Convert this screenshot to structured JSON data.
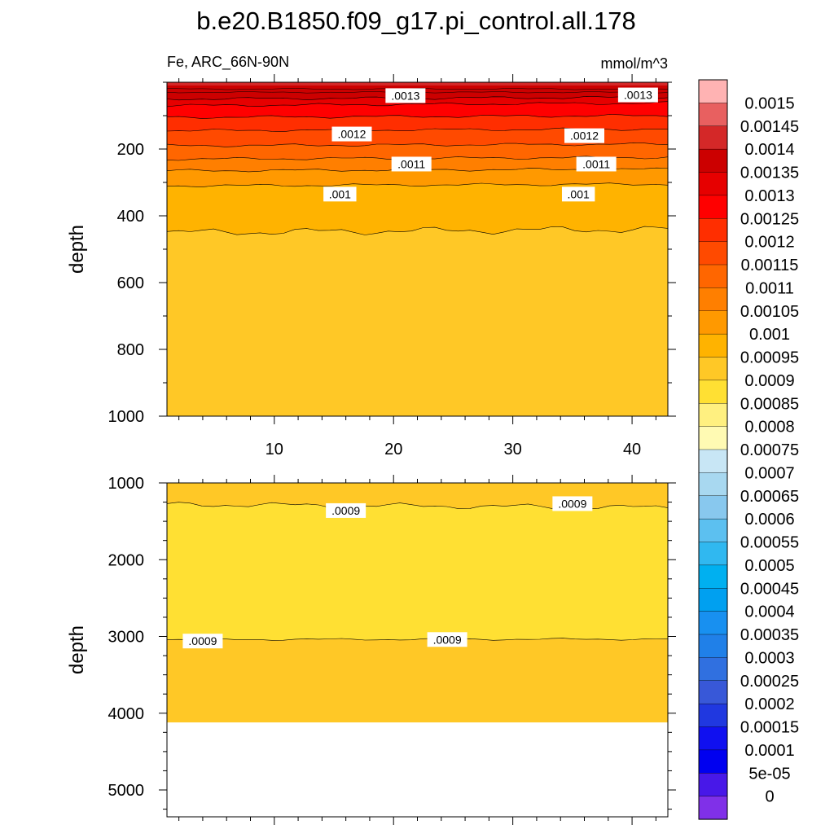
{
  "title": "b.e20.B1850.f09_g17.pi_control.all.178",
  "variable_label": "Fe, ARC_66N-90N",
  "units": "mmol/m^3",
  "colorbar": {
    "labels": [
      "0.0015",
      "0.00145",
      "0.0014",
      "0.00135",
      "0.0013",
      "0.00125",
      "0.0012",
      "0.00115",
      "0.0011",
      "0.00105",
      "0.001",
      "0.00095",
      "0.0009",
      "0.00085",
      "0.0008",
      "0.00075",
      "0.0007",
      "0.00065",
      "0.0006",
      "0.00055",
      "0.0005",
      "0.00045",
      "0.0004",
      "0.00035",
      "0.0003",
      "0.00025",
      "0.0002",
      "0.00015",
      "0.0001",
      "5e-05",
      "0"
    ],
    "colors": [
      "#FFB3B3",
      "#E86060",
      "#D42828",
      "#CC0000",
      "#E60000",
      "#FF0000",
      "#FF2E00",
      "#FF4A00",
      "#FF6600",
      "#FF7F00",
      "#FF9900",
      "#FFB300",
      "#FFC826",
      "#FFE033",
      "#FFF080",
      "#FFFAB3",
      "#C8E6F5",
      "#A8D8F0",
      "#88C8EE",
      "#5CC0F0",
      "#30B8F0",
      "#00B0F0",
      "#00A0F0",
      "#1890F0",
      "#2080E8",
      "#3070E0",
      "#3858D8",
      "#2038E0",
      "#1010F0",
      "#0000F0",
      "#4818E8",
      "#8030E8"
    ]
  },
  "chart_data": [
    {
      "type": "heatmap",
      "panel": "upper",
      "title": "Fe, ARC_66N-90N",
      "units": "mmol/m^3",
      "ylabel": "depth",
      "xlabel": "",
      "xlim": [
        1,
        43
      ],
      "ylim": [
        1000,
        0
      ],
      "x_ticks": [
        10,
        20,
        30,
        40
      ],
      "x_tick_labels": [
        "10",
        "20",
        "30",
        "40"
      ],
      "y_ticks": [
        200,
        400,
        600,
        800,
        1000
      ],
      "y_tick_labels": [
        "200",
        "400",
        "600",
        "800",
        "1000"
      ],
      "contour_levels": [
        0.00135,
        0.0013,
        0.00125,
        0.0012,
        0.00115,
        0.0011,
        0.00105,
        0.001,
        0.00095
      ],
      "contour_depths": [
        [
          50,
          45
        ],
        [
          70,
          62
        ],
        [
          105,
          100
        ],
        [
          145,
          140
        ],
        [
          190,
          185
        ],
        [
          230,
          225
        ],
        [
          265,
          260
        ],
        [
          310,
          305
        ],
        [
          450,
          440
        ]
      ],
      "contour_labels": [
        {
          "text": ".0013",
          "x": 21,
          "y": 40
        },
        {
          "text": ".0013",
          "x": 40.5,
          "y": 38
        },
        {
          "text": ".0012",
          "x": 16.5,
          "y": 155
        },
        {
          "text": ".0012",
          "x": 36,
          "y": 160
        },
        {
          "text": ".0011",
          "x": 21.5,
          "y": 245
        },
        {
          "text": ".0011",
          "x": 37,
          "y": 245
        },
        {
          "text": ".001",
          "x": 15.5,
          "y": 335
        },
        {
          "text": ".001",
          "x": 35.5,
          "y": 335
        }
      ],
      "deep_value": 0.00093
    },
    {
      "type": "heatmap",
      "panel": "lower",
      "ylabel": "depth",
      "xlabel": "",
      "xlim": [
        1,
        43
      ],
      "ylim": [
        5350,
        1000
      ],
      "y_ticks": [
        1000,
        2000,
        3000,
        4000,
        5000
      ],
      "y_tick_labels": [
        "1000",
        "2000",
        "3000",
        "4000",
        "5000"
      ],
      "contour_levels": [
        0.0009,
        0.0009
      ],
      "contour_depths": [
        1280,
        3040
      ],
      "contour_labels": [
        {
          "text": ".0009",
          "x": 16,
          "y": 1360
        },
        {
          "text": ".0009",
          "x": 35,
          "y": 1270
        },
        {
          "text": ".0009",
          "x": 4,
          "y": 3060
        },
        {
          "text": ".0009",
          "x": 24.5,
          "y": 3040
        }
      ],
      "ocean_bottom": 4120,
      "value_above_line": 0.00093,
      "value_middle": 0.00087,
      "value_below_line": 0.00092
    }
  ]
}
